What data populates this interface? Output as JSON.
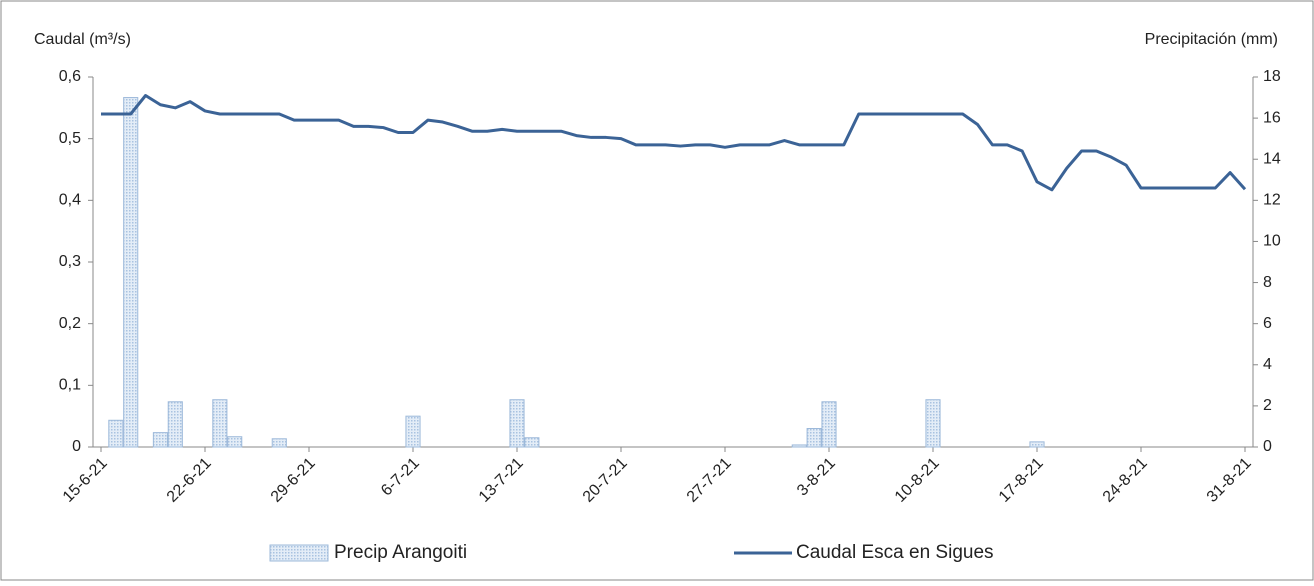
{
  "chart_data": {
    "type": "combo",
    "categories": [
      "15-6-21",
      null,
      null,
      null,
      null,
      null,
      null,
      "22-6-21",
      null,
      null,
      null,
      null,
      null,
      null,
      "29-6-21",
      null,
      null,
      null,
      null,
      null,
      null,
      "6-7-21",
      null,
      null,
      null,
      null,
      null,
      null,
      "13-7-21",
      null,
      null,
      null,
      null,
      null,
      null,
      "20-7-21",
      null,
      null,
      null,
      null,
      null,
      null,
      "27-7-21",
      null,
      null,
      null,
      null,
      null,
      null,
      "3-8-21",
      null,
      null,
      null,
      null,
      null,
      null,
      "10-8-21",
      null,
      null,
      null,
      null,
      null,
      null,
      "17-8-21",
      null,
      null,
      null,
      null,
      null,
      null,
      "24-8-21",
      null,
      null,
      null,
      null,
      null,
      null,
      "31-8-21"
    ],
    "y_label": "Caudal (m³/s)",
    "y2_label": "Precipitación (mm)",
    "ylim": [
      0,
      0.6
    ],
    "yticks": [
      0,
      {
        "value": 0.1,
        "label": "0,1"
      },
      {
        "value": 0.2,
        "label": "0,2"
      },
      {
        "value": 0.3,
        "label": "0,3"
      },
      {
        "value": 0.4,
        "label": "0,4"
      },
      {
        "value": 0.5,
        "label": "0,5"
      },
      {
        "value": 0.6,
        "label": "0,6"
      }
    ],
    "y2lim": [
      0,
      18
    ],
    "y2ticks": [
      0,
      2,
      4,
      6,
      8,
      10,
      12,
      14,
      16,
      18
    ],
    "series": [
      {
        "name": "Precip Arangoiti",
        "type": "bar",
        "axis": "y2",
        "color": "#c5d7ec",
        "values": [
          0,
          1.3,
          17.0,
          0,
          0.7,
          2.2,
          0,
          0,
          2.3,
          0.5,
          0,
          0,
          0.4,
          0,
          0,
          0,
          0,
          0,
          0,
          0,
          0,
          1.5,
          0,
          0,
          0,
          0,
          0,
          0,
          2.3,
          0.45,
          0,
          0,
          0,
          0,
          0,
          0,
          0,
          0,
          0,
          0,
          0,
          0,
          0,
          0,
          0,
          0,
          0,
          0.1,
          0.9,
          2.2,
          0,
          0,
          0,
          0,
          0,
          0,
          2.3,
          0,
          0,
          0,
          0,
          0,
          0,
          0.25,
          0,
          0,
          0,
          0,
          0,
          0,
          0,
          0,
          0,
          0,
          0,
          0,
          0,
          0
        ]
      },
      {
        "name": "Caudal Esca en Sigues",
        "type": "line",
        "color": "#3b6396",
        "values": [
          0.54,
          0.54,
          0.54,
          0.57,
          0.555,
          0.55,
          0.56,
          0.545,
          0.54,
          0.54,
          0.54,
          0.54,
          0.54,
          0.53,
          0.53,
          0.53,
          0.53,
          0.52,
          0.52,
          0.518,
          0.51,
          0.51,
          0.53,
          0.527,
          0.52,
          0.512,
          0.512,
          0.515,
          0.512,
          0.512,
          0.512,
          0.512,
          0.505,
          0.502,
          0.502,
          0.5,
          0.49,
          0.49,
          0.49,
          0.488,
          0.49,
          0.49,
          0.486,
          0.49,
          0.49,
          0.49,
          0.497,
          0.49,
          0.49,
          0.49,
          0.49,
          0.54,
          0.54,
          0.54,
          0.54,
          0.54,
          0.54,
          0.54,
          0.54,
          0.523,
          0.49,
          0.49,
          0.48,
          0.43,
          0.417,
          0.452,
          0.48,
          0.48,
          0.47,
          0.457,
          0.42,
          0.42,
          0.42,
          0.42,
          0.42,
          0.42,
          0.445,
          0.418
        ]
      }
    ]
  }
}
